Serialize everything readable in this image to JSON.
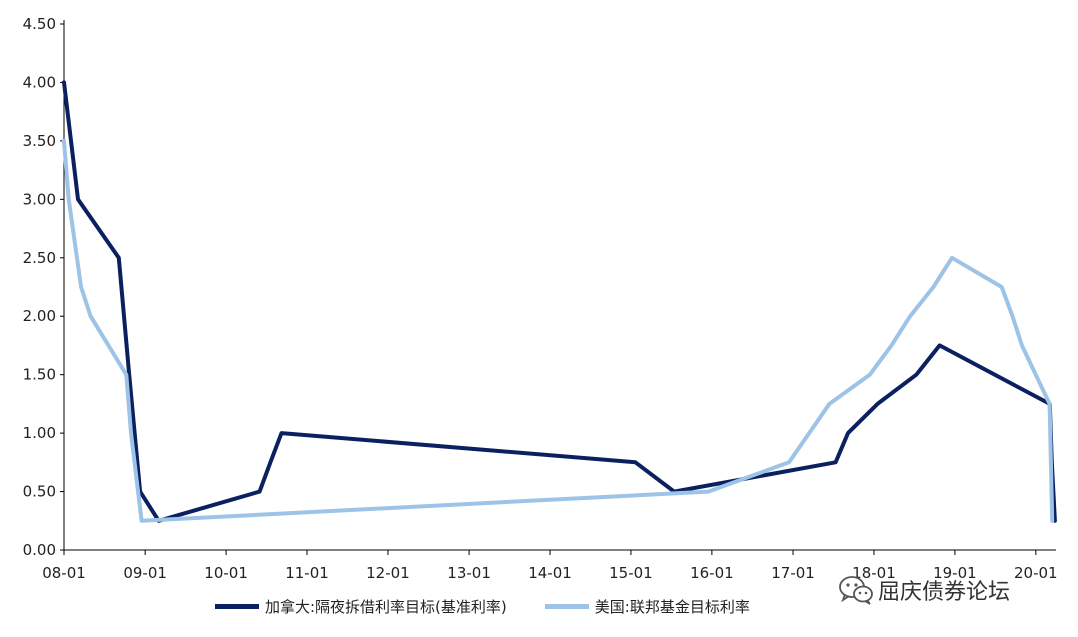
{
  "chart_data": {
    "type": "line",
    "title": "",
    "xlabel": "",
    "ylabel": "",
    "ylim": [
      0,
      4.5
    ],
    "y_ticks": [
      "0.00",
      "0.50",
      "1.00",
      "1.50",
      "2.00",
      "2.50",
      "3.00",
      "3.50",
      "4.00",
      "4.50"
    ],
    "x_ticks": [
      "08-01",
      "09-01",
      "10-01",
      "11-01",
      "12-01",
      "13-01",
      "14-01",
      "15-01",
      "16-01",
      "17-01",
      "18-01",
      "19-01",
      "20-01"
    ],
    "grid": false,
    "legend_position": "bottom",
    "series": [
      {
        "name": "加拿大:隔夜拆借利率目标(基准利率)",
        "color": "#0b2060",
        "points": [
          [
            "2008-01-01",
            4.0
          ],
          [
            "2008-03-04",
            3.0
          ],
          [
            "2008-09-04",
            2.5
          ],
          [
            "2008-10-21",
            1.5
          ],
          [
            "2008-12-09",
            0.5
          ],
          [
            "2009-03-03",
            0.25
          ],
          [
            "2010-06-01",
            0.5
          ],
          [
            "2010-07-20",
            0.75
          ],
          [
            "2010-09-08",
            1.0
          ],
          [
            "2015-01-21",
            0.75
          ],
          [
            "2015-07-15",
            0.5
          ],
          [
            "2017-07-12",
            0.75
          ],
          [
            "2017-09-06",
            1.0
          ],
          [
            "2018-01-17",
            1.25
          ],
          [
            "2018-07-11",
            1.5
          ],
          [
            "2018-10-24",
            1.75
          ],
          [
            "2020-03-04",
            1.25
          ],
          [
            "2020-03-13",
            0.75
          ],
          [
            "2020-03-27",
            0.25
          ]
        ]
      },
      {
        "name": "美国:联邦基金目标利率",
        "color": "#9dc3e6",
        "points": [
          [
            "2008-01-01",
            3.5
          ],
          [
            "2008-01-22",
            3.0
          ],
          [
            "2008-03-18",
            2.25
          ],
          [
            "2008-04-30",
            2.0
          ],
          [
            "2008-10-08",
            1.5
          ],
          [
            "2008-10-29",
            1.0
          ],
          [
            "2008-12-16",
            0.25
          ],
          [
            "2015-12-16",
            0.5
          ],
          [
            "2016-12-14",
            0.75
          ],
          [
            "2017-03-15",
            1.0
          ],
          [
            "2017-06-14",
            1.25
          ],
          [
            "2017-12-13",
            1.5
          ],
          [
            "2018-03-21",
            1.75
          ],
          [
            "2018-06-13",
            2.0
          ],
          [
            "2018-09-26",
            2.25
          ],
          [
            "2018-12-19",
            2.5
          ],
          [
            "2019-07-31",
            2.25
          ],
          [
            "2019-09-18",
            2.0
          ],
          [
            "2019-10-30",
            1.75
          ],
          [
            "2020-03-03",
            1.25
          ],
          [
            "2020-03-15",
            0.25
          ]
        ]
      }
    ]
  },
  "watermark": {
    "text": "屈庆债券论坛",
    "icon": "wechat-icon"
  }
}
